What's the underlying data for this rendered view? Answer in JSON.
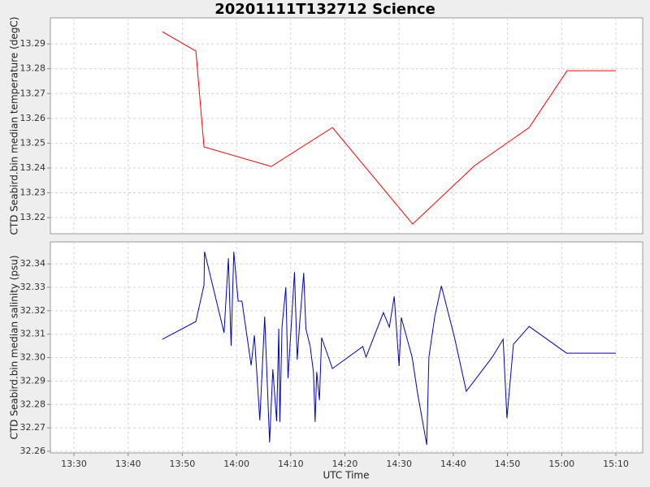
{
  "chart_data": [
    {
      "type": "line",
      "title": "20201111T132712 Science",
      "y_label": "CTD Seabird.bin median temperature (degC)",
      "x": [
        826.3,
        832.5,
        834.0,
        846.4,
        857.7,
        872.5,
        883.9,
        894.0,
        901.0,
        910.0
      ],
      "values": [
        13.2949,
        13.2871,
        13.2485,
        13.2406,
        13.2563,
        13.2174,
        13.2409,
        13.2563,
        13.2792,
        13.2792
      ],
      "color": "#ff0000",
      "ylim": [
        13.2135,
        13.3005
      ],
      "yticks": [
        13.22,
        13.23,
        13.24,
        13.25,
        13.26,
        13.27,
        13.28,
        13.29
      ],
      "grid": true
    },
    {
      "type": "line",
      "x_label": "UTC Time",
      "y_label": "CTD Seabird.bin median salinity (psu)",
      "x": [
        826.3,
        832.5,
        834.0,
        834.1,
        837.7,
        838.5,
        839.0,
        839.5,
        840.3,
        841.0,
        842.7,
        843.3,
        844.3,
        845.2,
        846.1,
        846.7,
        847.4,
        847.8,
        848.0,
        848.4,
        849.1,
        849.5,
        850.7,
        851.2,
        851.6,
        852.4,
        852.8,
        853.6,
        854.2,
        854.5,
        854.8,
        855.3,
        855.7,
        857.7,
        863.3,
        863.9,
        867.1,
        868.2,
        869.1,
        870.0,
        870.4,
        872.4,
        873.4,
        875.1,
        875.5,
        876.6,
        877.8,
        880.2,
        882.4,
        887.2,
        889.2,
        889.9,
        891.1,
        894.0,
        900.9,
        910.0
      ],
      "values": [
        32.3078,
        32.3154,
        32.331,
        32.3452,
        32.3106,
        32.3424,
        32.305,
        32.3452,
        32.3241,
        32.3241,
        32.2967,
        32.3095,
        32.2732,
        32.3175,
        32.2638,
        32.295,
        32.2728,
        32.3123,
        32.2725,
        32.3133,
        32.33,
        32.2912,
        32.3365,
        32.2991,
        32.313,
        32.3362,
        32.3123,
        32.3047,
        32.2936,
        32.2725,
        32.2939,
        32.2818,
        32.3085,
        32.2953,
        32.3047,
        32.3002,
        32.3192,
        32.313,
        32.3261,
        32.2964,
        32.3171,
        32.3002,
        32.2849,
        32.2628,
        32.3002,
        32.3178,
        32.3306,
        32.3088,
        32.2856,
        32.3002,
        32.3078,
        32.2742,
        32.3057,
        32.3133,
        32.3019,
        32.3019
      ],
      "color": "#0000cc",
      "ylim": [
        32.2593,
        32.3494
      ],
      "yticks": [
        32.26,
        32.27,
        32.28,
        32.29,
        {
          "value": 32.3,
          "label": "32.30"
        },
        32.31,
        32.32,
        32.33,
        32.34
      ],
      "xlim": [
        805.65,
        914.95
      ],
      "xticks": [
        {
          "value": 810,
          "label": "13:30"
        },
        {
          "value": 820,
          "label": "13:40"
        },
        {
          "value": 830,
          "label": "13:50"
        },
        {
          "value": 840,
          "label": "14:00"
        },
        {
          "value": 850,
          "label": "14:10"
        },
        {
          "value": 860,
          "label": "14:20"
        },
        {
          "value": 870,
          "label": "14:30"
        },
        {
          "value": 880,
          "label": "14:40"
        },
        {
          "value": 890,
          "label": "14:50"
        },
        {
          "value": 900,
          "label": "15:00"
        },
        {
          "value": 910,
          "label": "15:10"
        }
      ],
      "grid": true
    }
  ]
}
